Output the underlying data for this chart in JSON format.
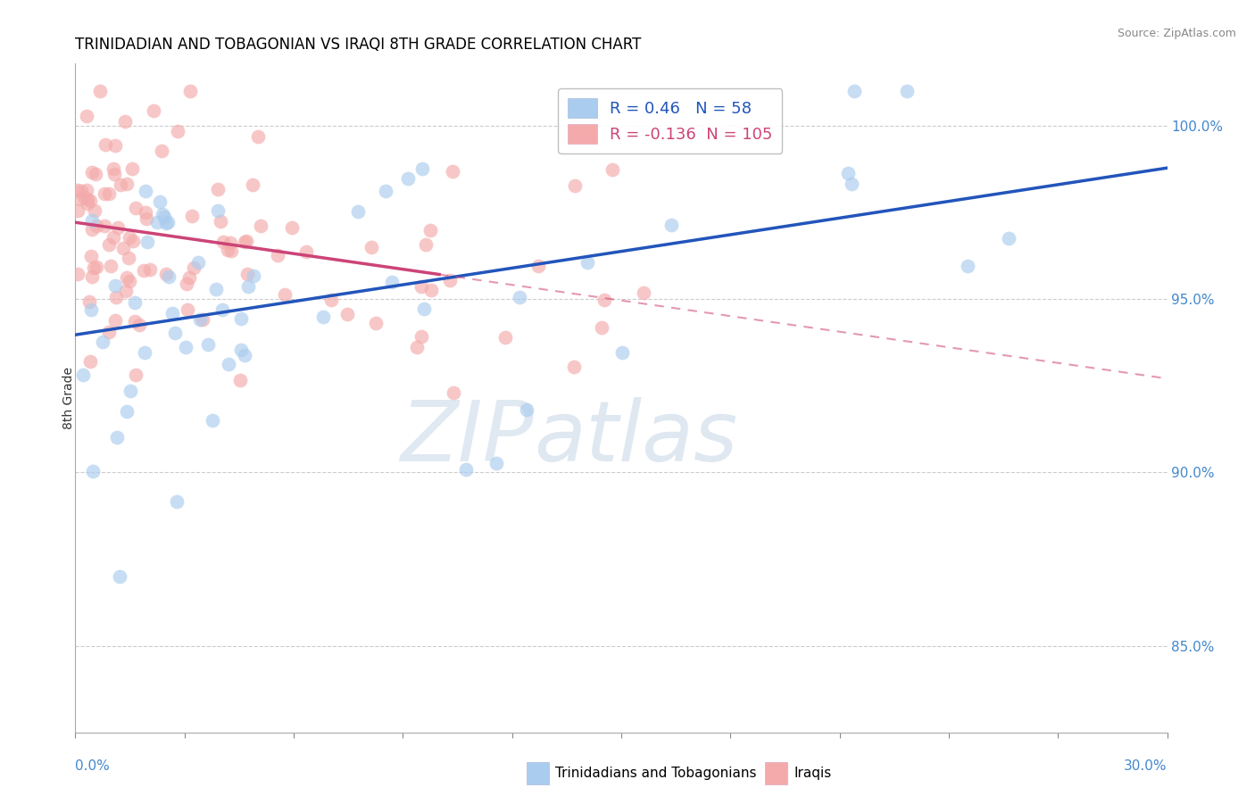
{
  "title": "TRINIDADIAN AND TOBAGONIAN VS IRAQI 8TH GRADE CORRELATION CHART",
  "source": "Source: ZipAtlas.com",
  "ylabel": "8th Grade",
  "x_min": 0.0,
  "x_max": 30.0,
  "y_min": 82.5,
  "y_max": 101.8,
  "blue_R": 0.46,
  "blue_N": 58,
  "pink_R": -0.136,
  "pink_N": 105,
  "blue_label": "Trinidadians and Tobagonians",
  "pink_label": "Iraqis",
  "blue_color": "#aaccee",
  "pink_color": "#f4aaaa",
  "blue_line_color": "#2255bb",
  "pink_line_color": "#cc4477",
  "background_color": "#ffffff",
  "grid_color": "#cccccc",
  "right_axis_color": "#4488cc",
  "yticks": [
    85.0,
    90.0,
    95.0,
    100.0
  ],
  "ytick_labels": [
    "85.0%",
    "90.0%",
    "95.0%",
    "100.0%"
  ]
}
